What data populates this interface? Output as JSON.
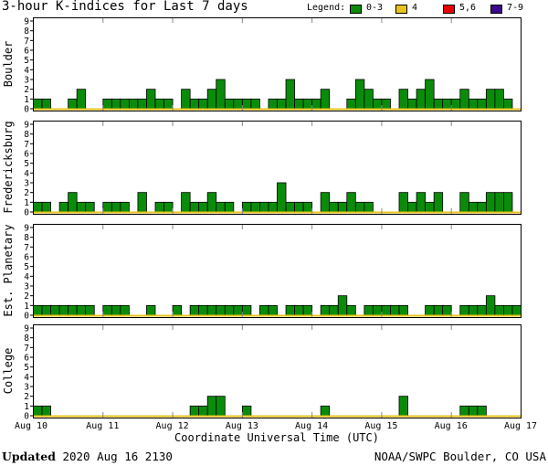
{
  "header": {
    "title": "3-hour K-indices for Last 7 days"
  },
  "legend": {
    "label": "Legend:",
    "items": [
      {
        "label": "0-3",
        "color": "#0a8c0a"
      },
      {
        "label": "4",
        "color": "#e8c41a"
      },
      {
        "label": "5,6",
        "color": "#e80000"
      },
      {
        "label": "7-9",
        "color": "#3a0a8a"
      }
    ]
  },
  "footer": {
    "updated_label": "Updated",
    "updated_value": "2020 Aug 16 2130",
    "credit": "NOAA/SWPC Boulder, CO USA"
  },
  "chart_data": {
    "type": "bar",
    "title": "3-hour K-indices for Last 7 days",
    "xlabel": "Coordinate Universal Time (UTC)",
    "x_ticks": [
      "Aug 10",
      "Aug 11",
      "Aug 12",
      "Aug 13",
      "Aug 14",
      "Aug 15",
      "Aug 16",
      "Aug 17"
    ],
    "ylim": [
      0,
      9
    ],
    "y_ticks": [
      "0",
      "1",
      "2",
      "3",
      "4",
      "5",
      "6",
      "7",
      "8",
      "9"
    ],
    "grid": false,
    "series": [
      {
        "name": "Boulder",
        "values": [
          1,
          1,
          0,
          0,
          1,
          2,
          0,
          0,
          1,
          1,
          1,
          1,
          1,
          2,
          1,
          1,
          0,
          2,
          1,
          1,
          2,
          3,
          1,
          1,
          1,
          1,
          0,
          1,
          1,
          3,
          1,
          1,
          1,
          2,
          0,
          0,
          1,
          3,
          2,
          1,
          1,
          0,
          2,
          1,
          2,
          3,
          1,
          1,
          1,
          2,
          1,
          1,
          2,
          2,
          1,
          0
        ]
      },
      {
        "name": "Fredericksburg",
        "values": [
          1,
          1,
          0,
          1,
          2,
          1,
          1,
          0,
          1,
          1,
          1,
          0,
          2,
          0,
          1,
          1,
          0,
          2,
          1,
          1,
          2,
          1,
          1,
          0,
          1,
          1,
          1,
          1,
          3,
          1,
          1,
          1,
          0,
          2,
          1,
          1,
          2,
          1,
          1,
          0,
          0,
          0,
          2,
          1,
          2,
          1,
          2,
          0,
          0,
          2,
          1,
          1,
          2,
          2,
          2,
          0
        ]
      },
      {
        "name": "Est. Planetary",
        "values": [
          1,
          1,
          1,
          1,
          1,
          1,
          1,
          0,
          1,
          1,
          1,
          0,
          0,
          1,
          0,
          0,
          1,
          0,
          1,
          1,
          1,
          1,
          1,
          1,
          1,
          0,
          1,
          1,
          0,
          1,
          1,
          1,
          0,
          1,
          1,
          2,
          1,
          0,
          1,
          1,
          1,
          1,
          1,
          0,
          0,
          1,
          1,
          1,
          0,
          1,
          1,
          1,
          2,
          1,
          1,
          1
        ]
      },
      {
        "name": "College",
        "values": [
          1,
          1,
          0,
          0,
          0,
          0,
          0,
          0,
          0,
          0,
          0,
          0,
          0,
          0,
          0,
          0,
          0,
          0,
          1,
          1,
          2,
          2,
          0,
          0,
          1,
          0,
          0,
          0,
          0,
          0,
          0,
          0,
          0,
          1,
          0,
          0,
          0,
          0,
          0,
          0,
          0,
          0,
          2,
          0,
          0,
          0,
          0,
          0,
          0,
          1,
          1,
          1,
          0,
          0,
          0,
          0
        ]
      }
    ]
  }
}
